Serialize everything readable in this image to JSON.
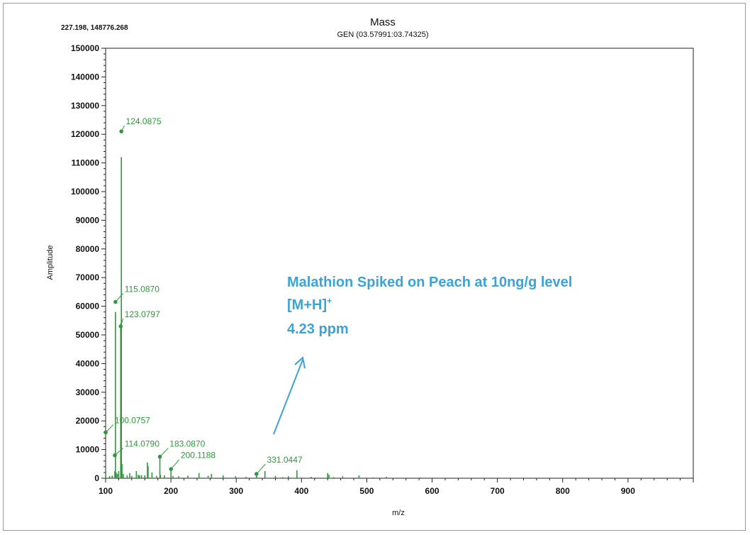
{
  "chart_data": {
    "type": "bar",
    "title": "Mass",
    "subtitle": "GEN (03.57991:03.74325)",
    "cursor_readout": "227.198, 148776.268",
    "xlabel": "m/z",
    "ylabel": "Amplitude",
    "xlim": [
      100,
      1000
    ],
    "ylim": [
      0,
      150000
    ],
    "x_ticks": [
      100,
      200,
      300,
      400,
      500,
      600,
      700,
      800,
      900
    ],
    "y_ticks": [
      0,
      10000,
      20000,
      30000,
      40000,
      50000,
      60000,
      70000,
      80000,
      90000,
      100000,
      110000,
      120000,
      130000,
      140000,
      150000
    ],
    "series": [
      {
        "color": "#2e9a3c",
        "peaks": [
          {
            "x": 100.08,
            "y": 2500
          },
          {
            "x": 106.0,
            "y": 800
          },
          {
            "x": 110.0,
            "y": 900
          },
          {
            "x": 114.08,
            "y": 2500
          },
          {
            "x": 115.09,
            "y": 58000
          },
          {
            "x": 116.1,
            "y": 2000
          },
          {
            "x": 118.0,
            "y": 1500
          },
          {
            "x": 120.0,
            "y": 2500
          },
          {
            "x": 123.08,
            "y": 54000
          },
          {
            "x": 124.09,
            "y": 112000
          },
          {
            "x": 125.0,
            "y": 5000
          },
          {
            "x": 127.0,
            "y": 1500
          },
          {
            "x": 133.0,
            "y": 1000
          },
          {
            "x": 137.0,
            "y": 1800
          },
          {
            "x": 140.0,
            "y": 800
          },
          {
            "x": 147.0,
            "y": 2500
          },
          {
            "x": 150.0,
            "y": 1200
          },
          {
            "x": 152.0,
            "y": 1000
          },
          {
            "x": 155.0,
            "y": 1100
          },
          {
            "x": 160.0,
            "y": 1000
          },
          {
            "x": 164.0,
            "y": 5500
          },
          {
            "x": 165.0,
            "y": 4200
          },
          {
            "x": 171.0,
            "y": 2000
          },
          {
            "x": 178.0,
            "y": 800
          },
          {
            "x": 183.09,
            "y": 8000
          },
          {
            "x": 184.0,
            "y": 1200
          },
          {
            "x": 190.0,
            "y": 1000
          },
          {
            "x": 200.12,
            "y": 3500
          },
          {
            "x": 203.0,
            "y": 800
          },
          {
            "x": 212.0,
            "y": 700
          },
          {
            "x": 226.0,
            "y": 900
          },
          {
            "x": 243.0,
            "y": 1800
          },
          {
            "x": 257.0,
            "y": 900
          },
          {
            "x": 262.0,
            "y": 1500
          },
          {
            "x": 280.0,
            "y": 1000
          },
          {
            "x": 299.0,
            "y": 700
          },
          {
            "x": 315.0,
            "y": 500
          },
          {
            "x": 331.04,
            "y": 1200
          },
          {
            "x": 344.0,
            "y": 2500
          },
          {
            "x": 360.0,
            "y": 800
          },
          {
            "x": 371.0,
            "y": 400
          },
          {
            "x": 380.0,
            "y": 700
          },
          {
            "x": 393.0,
            "y": 2800
          },
          {
            "x": 415.0,
            "y": 500
          },
          {
            "x": 440.0,
            "y": 1800
          },
          {
            "x": 442.0,
            "y": 1200
          },
          {
            "x": 449.0,
            "y": 400
          },
          {
            "x": 463.0,
            "y": 700
          },
          {
            "x": 488.0,
            "y": 1000
          },
          {
            "x": 510.0,
            "y": 300
          },
          {
            "x": 530.0,
            "y": 500
          },
          {
            "x": 582.0,
            "y": 300
          },
          {
            "x": 692.0,
            "y": 250
          },
          {
            "x": 762.0,
            "y": 200
          }
        ]
      }
    ],
    "labeled_peaks": [
      {
        "label": "124.0875",
        "x": 124.09,
        "y": 121000,
        "text_x": 131,
        "text_y": 123500
      },
      {
        "label": "115.0870",
        "x": 115.09,
        "y": 61500,
        "text_x": 129,
        "text_y": 65000
      },
      {
        "label": "123.0797",
        "x": 123.08,
        "y": 53000,
        "text_x": 129,
        "text_y": 56200
      },
      {
        "label": "100.0757",
        "x": 100.08,
        "y": 16000,
        "text_x": 114,
        "text_y": 19200
      },
      {
        "label": "114.0790",
        "x": 114.08,
        "y": 8000,
        "text_x": 129,
        "text_y": 11000
      },
      {
        "label": "183.0870",
        "x": 183.09,
        "y": 7500,
        "text_x": 198,
        "text_y": 11000
      },
      {
        "label": "200.1188",
        "x": 200.12,
        "y": 3200,
        "text_x": 215,
        "text_y": 7000
      },
      {
        "label": "331.0447",
        "x": 331.04,
        "y": 1500,
        "text_x": 347,
        "text_y": 5500
      }
    ],
    "annotation": {
      "line1": "Malathion Spiked on Peach at 10ng/g level",
      "line2": "[M+H]",
      "line2_sup": "+",
      "line3": "4.23 ppm",
      "color": "#3aa3d8"
    }
  }
}
